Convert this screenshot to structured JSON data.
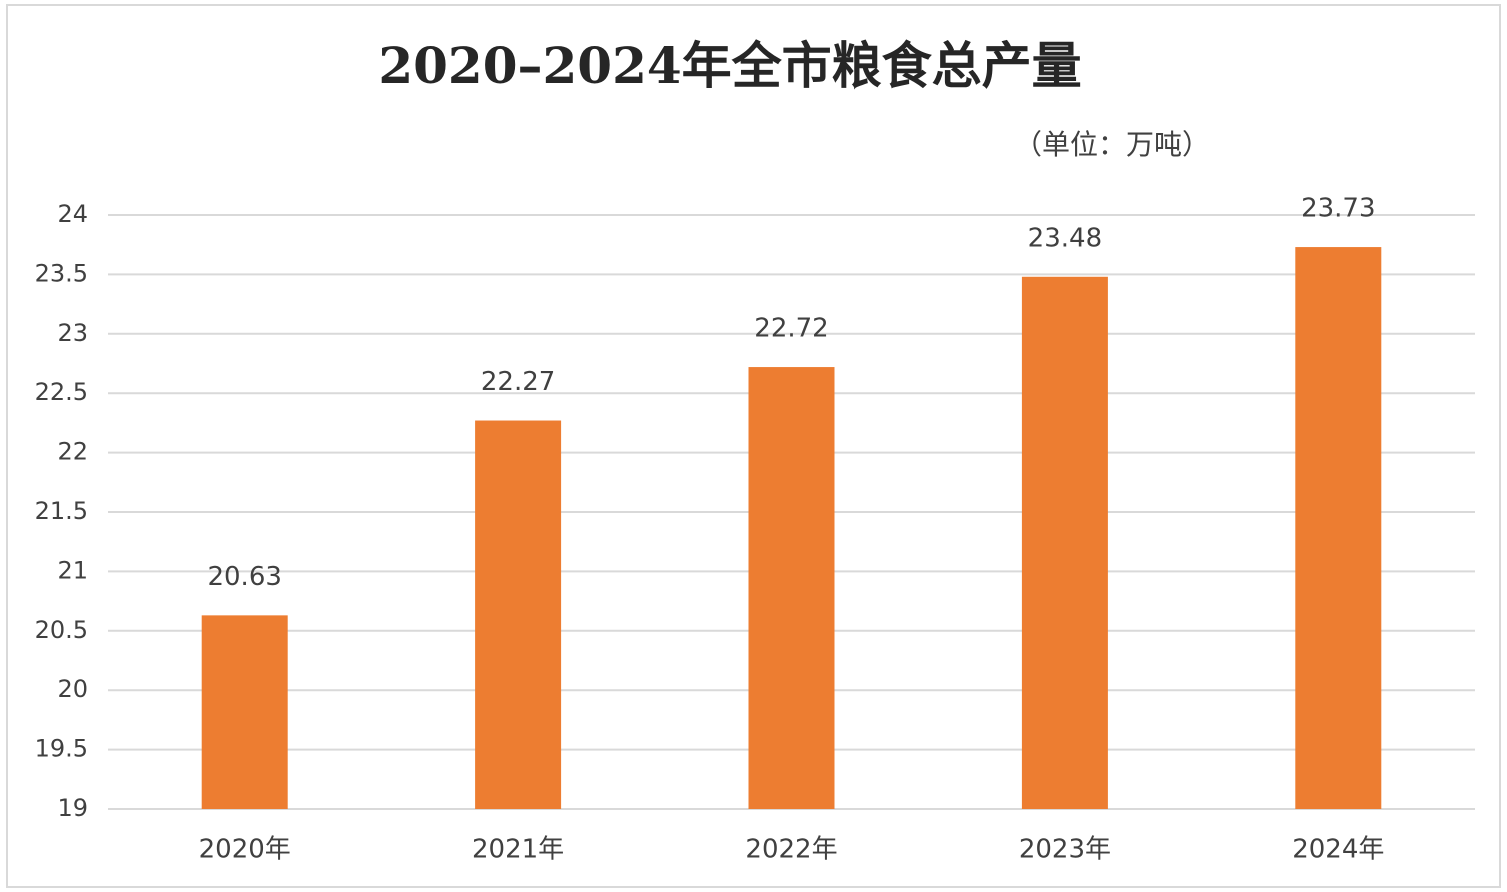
{
  "chart_data": {
    "type": "bar",
    "title": "2020–2024年全市粮食总产量",
    "subtitle": "（单位：万吨）",
    "categories": [
      "2020年",
      "2021年",
      "2022年",
      "2023年",
      "2024年"
    ],
    "values": [
      20.63,
      22.27,
      22.72,
      23.48,
      23.73
    ],
    "color": "#ed7d31",
    "ylim": [
      19,
      24
    ],
    "yticks": [
      19,
      19.5,
      20,
      20.5,
      21,
      21.5,
      22,
      22.5,
      23,
      23.5,
      24
    ],
    "grid": true
  }
}
